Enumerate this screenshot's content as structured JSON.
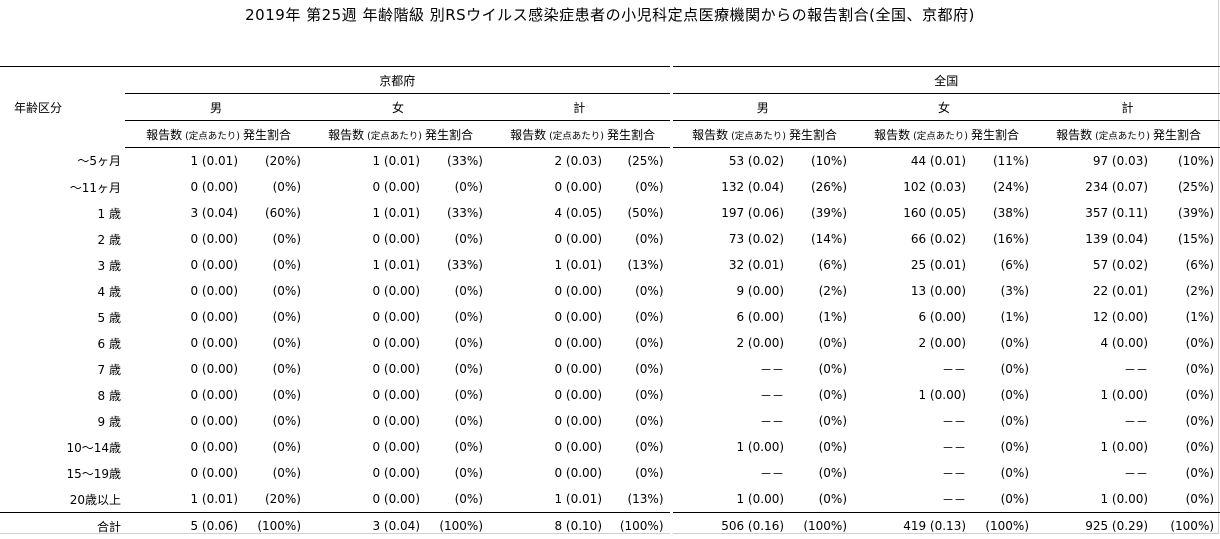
{
  "title": "2019年 第25週 年齢階級 別RSウイルス感染症患者の小児科定点医療機関からの報告割合(全国、京都府)",
  "header": {
    "age_label": "年齢区分",
    "regions": [
      "京都府",
      "全国"
    ],
    "sexes": [
      "男",
      "女",
      "計"
    ],
    "col_count": "報告数",
    "col_per_site": "(定点あたり)",
    "col_rate": "発生割合"
  },
  "rows": [
    {
      "age": "～5ヶ月",
      "cells": [
        [
          "1 (0.01)",
          "(20%)"
        ],
        [
          "1 (0.01)",
          "(33%)"
        ],
        [
          "2 (0.03)",
          "(25%)"
        ],
        [
          "53 (0.02)",
          "(10%)"
        ],
        [
          "44 (0.01)",
          "(11%)"
        ],
        [
          "97 (0.03)",
          "(10%)"
        ]
      ]
    },
    {
      "age": "～11ヶ月",
      "cells": [
        [
          "0 (0.00)",
          "(0%)"
        ],
        [
          "0 (0.00)",
          "(0%)"
        ],
        [
          "0 (0.00)",
          "(0%)"
        ],
        [
          "132 (0.04)",
          "(26%)"
        ],
        [
          "102 (0.03)",
          "(24%)"
        ],
        [
          "234 (0.07)",
          "(25%)"
        ]
      ]
    },
    {
      "age": "1 歳",
      "cells": [
        [
          "3 (0.04)",
          "(60%)"
        ],
        [
          "1 (0.01)",
          "(33%)"
        ],
        [
          "4 (0.05)",
          "(50%)"
        ],
        [
          "197 (0.06)",
          "(39%)"
        ],
        [
          "160 (0.05)",
          "(38%)"
        ],
        [
          "357 (0.11)",
          "(39%)"
        ]
      ]
    },
    {
      "age": "2 歳",
      "cells": [
        [
          "0 (0.00)",
          "(0%)"
        ],
        [
          "0 (0.00)",
          "(0%)"
        ],
        [
          "0 (0.00)",
          "(0%)"
        ],
        [
          "73 (0.02)",
          "(14%)"
        ],
        [
          "66 (0.02)",
          "(16%)"
        ],
        [
          "139 (0.04)",
          "(15%)"
        ]
      ]
    },
    {
      "age": "3 歳",
      "cells": [
        [
          "0 (0.00)",
          "(0%)"
        ],
        [
          "1 (0.01)",
          "(33%)"
        ],
        [
          "1 (0.01)",
          "(13%)"
        ],
        [
          "32 (0.01)",
          "(6%)"
        ],
        [
          "25 (0.01)",
          "(6%)"
        ],
        [
          "57 (0.02)",
          "(6%)"
        ]
      ]
    },
    {
      "age": "4 歳",
      "cells": [
        [
          "0 (0.00)",
          "(0%)"
        ],
        [
          "0 (0.00)",
          "(0%)"
        ],
        [
          "0 (0.00)",
          "(0%)"
        ],
        [
          "9 (0.00)",
          "(2%)"
        ],
        [
          "13 (0.00)",
          "(3%)"
        ],
        [
          "22 (0.01)",
          "(2%)"
        ]
      ]
    },
    {
      "age": "5 歳",
      "cells": [
        [
          "0 (0.00)",
          "(0%)"
        ],
        [
          "0 (0.00)",
          "(0%)"
        ],
        [
          "0 (0.00)",
          "(0%)"
        ],
        [
          "6 (0.00)",
          "(1%)"
        ],
        [
          "6 (0.00)",
          "(1%)"
        ],
        [
          "12 (0.00)",
          "(1%)"
        ]
      ]
    },
    {
      "age": "6 歳",
      "cells": [
        [
          "0 (0.00)",
          "(0%)"
        ],
        [
          "0 (0.00)",
          "(0%)"
        ],
        [
          "0 (0.00)",
          "(0%)"
        ],
        [
          "2 (0.00)",
          "(0%)"
        ],
        [
          "2 (0.00)",
          "(0%)"
        ],
        [
          "4 (0.00)",
          "(0%)"
        ]
      ]
    },
    {
      "age": "7 歳",
      "cells": [
        [
          "0 (0.00)",
          "(0%)"
        ],
        [
          "0 (0.00)",
          "(0%)"
        ],
        [
          "0 (0.00)",
          "(0%)"
        ],
        [
          "－－",
          "(0%)"
        ],
        [
          "－－",
          "(0%)"
        ],
        [
          "－－",
          "(0%)"
        ]
      ]
    },
    {
      "age": "8 歳",
      "cells": [
        [
          "0 (0.00)",
          "(0%)"
        ],
        [
          "0 (0.00)",
          "(0%)"
        ],
        [
          "0 (0.00)",
          "(0%)"
        ],
        [
          "－－",
          "(0%)"
        ],
        [
          "1 (0.00)",
          "(0%)"
        ],
        [
          "1 (0.00)",
          "(0%)"
        ]
      ]
    },
    {
      "age": "9 歳",
      "cells": [
        [
          "0 (0.00)",
          "(0%)"
        ],
        [
          "0 (0.00)",
          "(0%)"
        ],
        [
          "0 (0.00)",
          "(0%)"
        ],
        [
          "－－",
          "(0%)"
        ],
        [
          "－－",
          "(0%)"
        ],
        [
          "－－",
          "(0%)"
        ]
      ]
    },
    {
      "age": "10～14歳",
      "cells": [
        [
          "0 (0.00)",
          "(0%)"
        ],
        [
          "0 (0.00)",
          "(0%)"
        ],
        [
          "0 (0.00)",
          "(0%)"
        ],
        [
          "1 (0.00)",
          "(0%)"
        ],
        [
          "－－",
          "(0%)"
        ],
        [
          "1 (0.00)",
          "(0%)"
        ]
      ]
    },
    {
      "age": "15～19歳",
      "cells": [
        [
          "0 (0.00)",
          "(0%)"
        ],
        [
          "0 (0.00)",
          "(0%)"
        ],
        [
          "0 (0.00)",
          "(0%)"
        ],
        [
          "－－",
          "(0%)"
        ],
        [
          "－－",
          "(0%)"
        ],
        [
          "－－",
          "(0%)"
        ]
      ]
    },
    {
      "age": "20歳以上",
      "cells": [
        [
          "1 (0.01)",
          "(20%)"
        ],
        [
          "0 (0.00)",
          "(0%)"
        ],
        [
          "1 (0.01)",
          "(13%)"
        ],
        [
          "1 (0.00)",
          "(0%)"
        ],
        [
          "－－",
          "(0%)"
        ],
        [
          "1 (0.00)",
          "(0%)"
        ]
      ]
    }
  ],
  "total": {
    "age": "合計",
    "cells": [
      [
        "5 (0.06)",
        "(100%)"
      ],
      [
        "3 (0.04)",
        "(100%)"
      ],
      [
        "8 (0.10)",
        "(100%)"
      ],
      [
        "506 (0.16)",
        "(100%)"
      ],
      [
        "419 (0.13)",
        "(100%)"
      ],
      [
        "925 (0.29)",
        "(100%)"
      ]
    ]
  }
}
